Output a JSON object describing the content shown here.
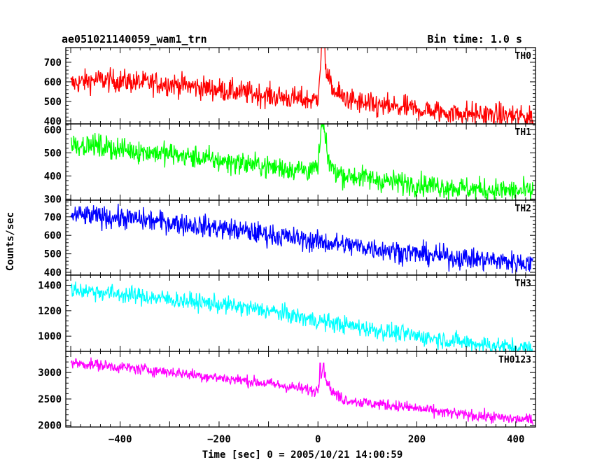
{
  "header": {
    "title": "ae051021140059_wam1_trn",
    "bin_time": "Bin time: 1.0 s"
  },
  "chart_data": {
    "type": "line",
    "title": "ae051021140059_wam1_trn",
    "xlabel": "Time [sec] 0 = 2005/10/21 14:00:59",
    "ylabel": "Counts/sec",
    "xlim": [
      -510,
      440
    ],
    "data_xrange": [
      -500,
      435
    ],
    "xticks": [
      -400,
      -200,
      0,
      200,
      400
    ],
    "grid": false,
    "panels": [
      {
        "name": "TH0",
        "color": "#ff0000",
        "ylim": [
          385,
          775
        ],
        "yticks": [
          400,
          500,
          600,
          700
        ],
        "x": [
          -500,
          -450,
          -400,
          -350,
          -300,
          -250,
          -200,
          -150,
          -100,
          -50,
          -5,
          0,
          5,
          10,
          15,
          20,
          30,
          50,
          100,
          150,
          200,
          250,
          300,
          350,
          400,
          435
        ],
        "y": [
          590,
          610,
          605,
          595,
          590,
          575,
          560,
          545,
          530,
          515,
          505,
          530,
          700,
          760,
          700,
          620,
          560,
          520,
          480,
          470,
          460,
          445,
          440,
          430,
          425,
          420
        ],
        "noise": 30,
        "peak": 780
      },
      {
        "name": "TH1",
        "color": "#00ff00",
        "ylim": [
          295,
          625
        ],
        "yticks": [
          300,
          400,
          500,
          600
        ],
        "x": [
          -500,
          -450,
          -400,
          -350,
          -300,
          -250,
          -200,
          -150,
          -100,
          -50,
          -5,
          0,
          5,
          10,
          15,
          20,
          30,
          50,
          100,
          150,
          200,
          250,
          300,
          350,
          400,
          435
        ],
        "y": [
          540,
          530,
          515,
          505,
          495,
          480,
          465,
          455,
          440,
          430,
          425,
          440,
          560,
          610,
          550,
          480,
          430,
          405,
          390,
          375,
          365,
          355,
          345,
          340,
          335,
          330
        ],
        "noise": 25,
        "peak": 625
      },
      {
        "name": "TH2",
        "color": "#0000ff",
        "ylim": [
          385,
          790
        ],
        "yticks": [
          400,
          500,
          600,
          700
        ],
        "x": [
          -500,
          -400,
          -300,
          -200,
          -100,
          0,
          100,
          200,
          300,
          400,
          435
        ],
        "y": [
          710,
          695,
          670,
          640,
          605,
          565,
          535,
          500,
          475,
          455,
          450
        ],
        "noise": 30
      },
      {
        "name": "TH3",
        "color": "#00ffff",
        "ylim": [
          880,
          1480
        ],
        "yticks": [
          1000,
          1200,
          1400
        ],
        "x": [
          -500,
          -400,
          -300,
          -200,
          -100,
          0,
          100,
          200,
          300,
          400,
          435
        ],
        "y": [
          1370,
          1330,
          1290,
          1250,
          1200,
          1120,
          1060,
          1000,
          950,
          910,
          900
        ],
        "noise": 35
      },
      {
        "name": "TH0123",
        "color": "#ff00ff",
        "ylim": [
          1970,
          3400
        ],
        "yticks": [
          2000,
          2500,
          3000
        ],
        "x": [
          -500,
          -450,
          -400,
          -350,
          -300,
          -250,
          -200,
          -150,
          -100,
          -50,
          -5,
          0,
          5,
          10,
          15,
          20,
          30,
          50,
          100,
          150,
          200,
          250,
          300,
          350,
          400,
          435
        ],
        "y": [
          3180,
          3150,
          3100,
          3060,
          3010,
          2960,
          2900,
          2850,
          2790,
          2720,
          2650,
          2700,
          2950,
          3100,
          2950,
          2800,
          2620,
          2500,
          2420,
          2380,
          2320,
          2250,
          2200,
          2160,
          2120,
          2100
        ],
        "noise": 55,
        "peak": 3180
      }
    ]
  }
}
